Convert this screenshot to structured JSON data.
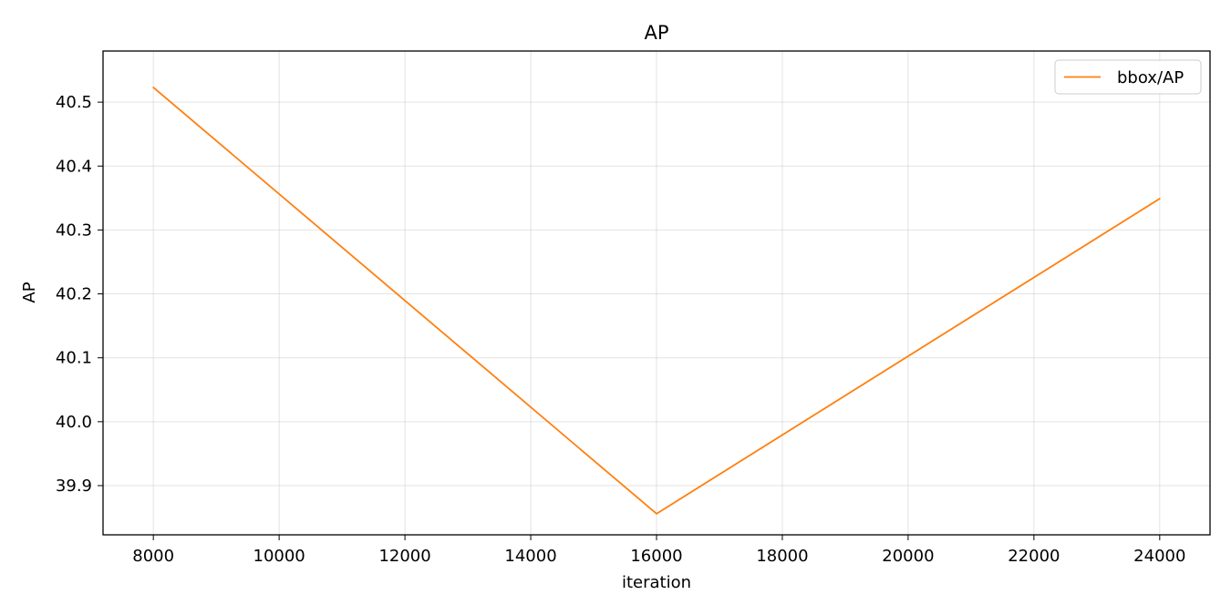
{
  "chart_data": {
    "type": "line",
    "title": "AP",
    "xlabel": "iteration",
    "ylabel": "AP",
    "xlim": [
      7200,
      24800
    ],
    "ylim": [
      39.823,
      40.58
    ],
    "x_ticks": [
      8000,
      10000,
      12000,
      14000,
      16000,
      18000,
      20000,
      22000,
      24000
    ],
    "y_ticks": [
      39.9,
      40.0,
      40.1,
      40.2,
      40.3,
      40.4,
      40.5
    ],
    "y_tick_labels": [
      "39.9",
      "40.0",
      "40.1",
      "40.2",
      "40.3",
      "40.4",
      "40.5"
    ],
    "grid": true,
    "legend_position": "top-right",
    "series": [
      {
        "name": "bbox/AP",
        "color": "#ff7f0e",
        "x": [
          8000,
          16000,
          24000
        ],
        "y": [
          40.523,
          39.856,
          40.349
        ]
      }
    ]
  }
}
